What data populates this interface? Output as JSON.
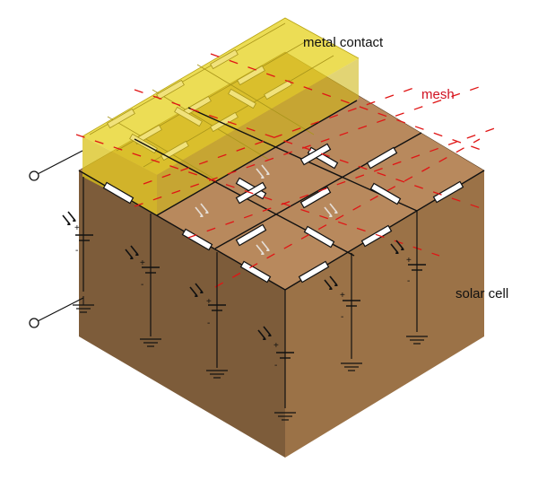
{
  "labels": {
    "metal_contact": "metal contact",
    "mesh": "mesh",
    "solar_cell": "solar cell"
  },
  "polarity": {
    "plus": "+",
    "minus": "-"
  },
  "colors": {
    "cell_top": "#b8895d",
    "cell_left": "#7d5c3a",
    "cell_right": "#9b7247",
    "contact": "#e6d21c",
    "mesh_label": "#d01020",
    "mesh_lines": "#e01515",
    "wire": "#111111"
  }
}
